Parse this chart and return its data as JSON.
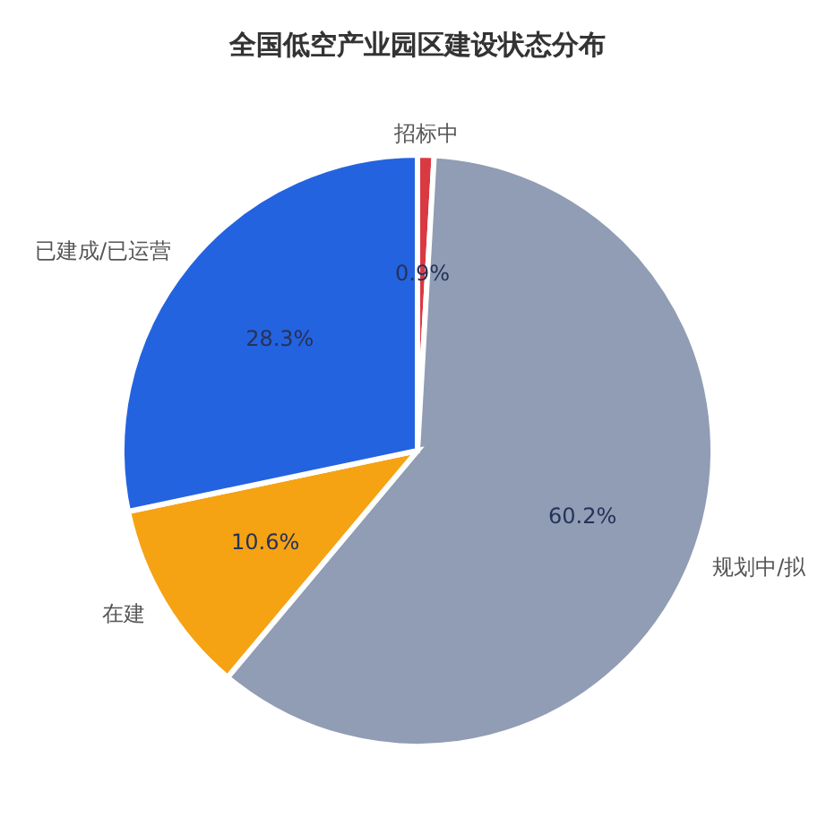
{
  "chart_data": {
    "type": "pie",
    "title": "全国低空产业园区建设状态分布",
    "categories": [
      "招标中",
      "规划中/拟",
      "在建",
      "已建成/已运营"
    ],
    "values": [
      0.9,
      60.2,
      10.6,
      28.3
    ],
    "colors": [
      "#d93a42",
      "#909db4",
      "#f5a213",
      "#2463df"
    ],
    "value_labels": [
      "0.9%",
      "60.2%",
      "10.6%",
      "28.3%"
    ]
  }
}
